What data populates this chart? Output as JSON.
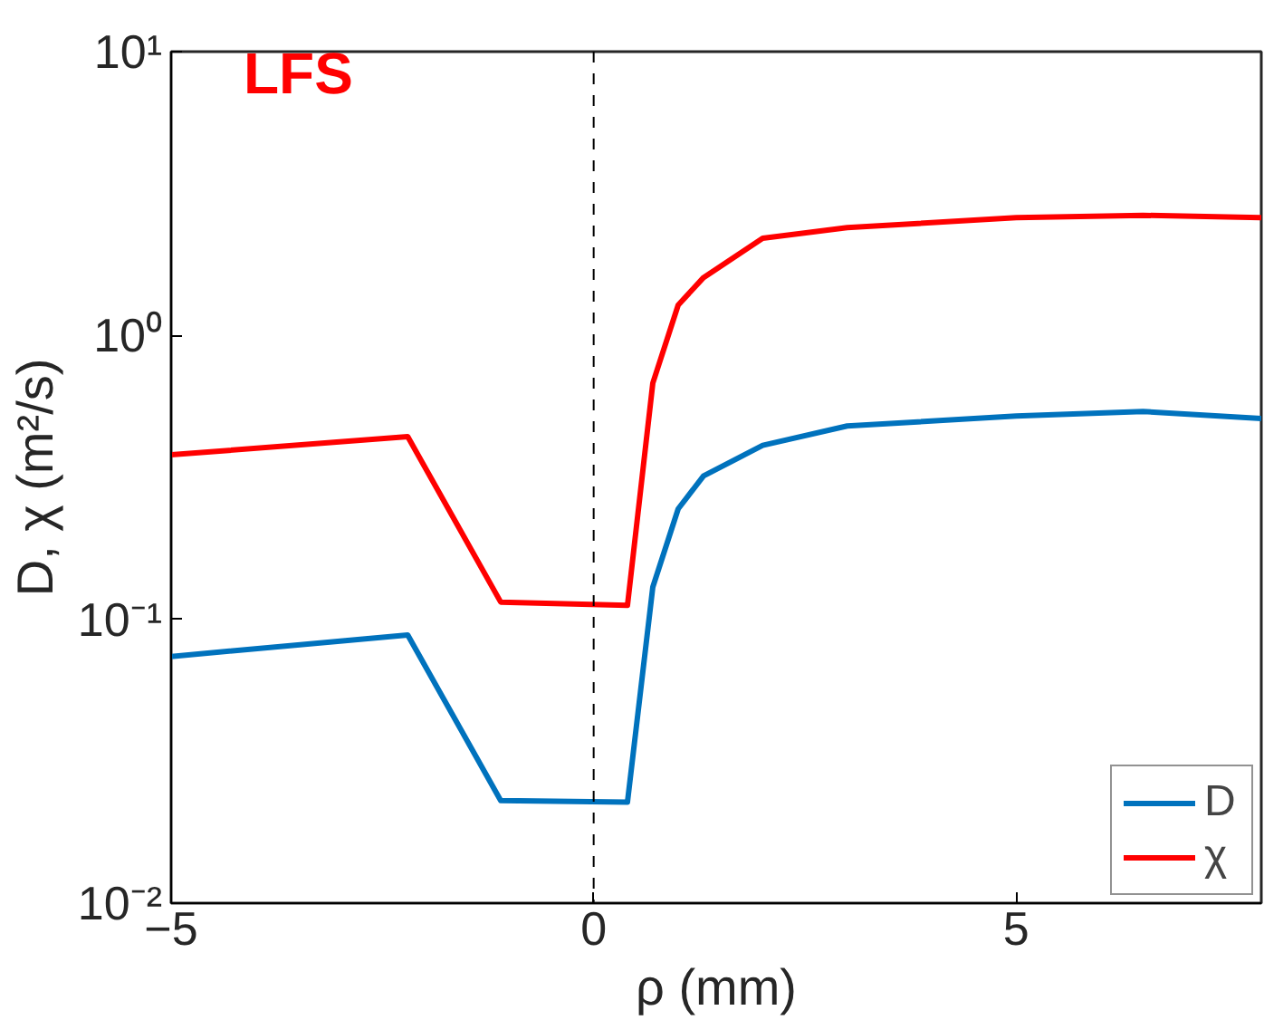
{
  "chart_data": {
    "type": "line",
    "xlabel": "ρ (mm)",
    "ylabel": "D, χ (m²/s)",
    "log": "y",
    "x": [
      -5,
      -2.2,
      -1.1,
      0.4,
      0.7,
      1.0,
      1.3,
      2,
      3,
      5,
      6.5,
      7.9
    ],
    "series": [
      {
        "name": "D",
        "color": "#0072bd",
        "values": [
          0.074,
          0.088,
          0.023,
          0.0227,
          0.13,
          0.245,
          0.32,
          0.41,
          0.48,
          0.52,
          0.54,
          0.51
        ]
      },
      {
        "name": "χ",
        "color": "#ff0000",
        "values": [
          0.38,
          0.44,
          0.115,
          0.112,
          0.68,
          1.28,
          1.6,
          2.2,
          2.4,
          2.6,
          2.65,
          2.6
        ]
      }
    ],
    "xlim": [
      -5,
      7.9
    ],
    "xticks": [
      -5,
      0,
      5
    ],
    "ylim": [
      0.01,
      10
    ],
    "yticks": [
      {
        "value": 0.01,
        "label": "10⁻²"
      },
      {
        "value": 0.1,
        "label": "10⁻¹"
      },
      {
        "value": 1,
        "label": "10⁰"
      },
      {
        "value": 10,
        "label": "10¹"
      }
    ],
    "ref_lines": [
      {
        "axis": "x",
        "value": 0,
        "label": null,
        "color": "#000000",
        "line_style": "dashed"
      }
    ],
    "annotations": [
      "LFS"
    ],
    "grid": false,
    "legend": "bottom right",
    "line_style": "solid",
    "marker": "none"
  }
}
